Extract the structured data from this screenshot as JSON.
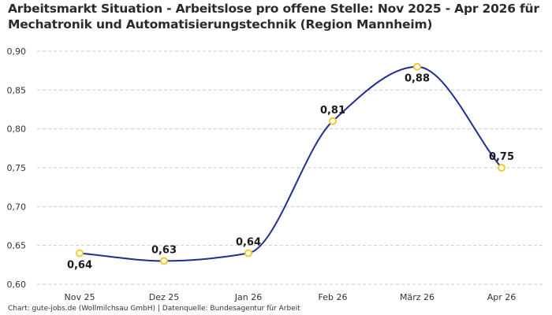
{
  "chart_data": {
    "type": "line",
    "title": "Arbeitsmarkt Situation - Arbeitslose pro offene Stelle: Nov 2025 - Apr 2026 für Mechatronik und Automatisierungstechnik (Region Mannheim)",
    "categories": [
      "Nov 25",
      "Dez 25",
      "Jan 26",
      "Feb 26",
      "März 26",
      "Apr 26"
    ],
    "series": [
      {
        "values": [
          0.64,
          0.63,
          0.64,
          0.81,
          0.88,
          0.75
        ],
        "labels": [
          "0,64",
          "0,63",
          "0,64",
          "0,81",
          "0,88",
          "0,75"
        ]
      }
    ],
    "y_ticks": [
      0.6,
      0.65,
      0.7,
      0.75,
      0.8,
      0.85,
      0.9
    ],
    "y_tick_labels": [
      "0,60",
      "0,65",
      "0,70",
      "0,75",
      "0,80",
      "0,85",
      "0,90"
    ],
    "ylim": [
      0.6,
      0.9
    ],
    "xlabel": "",
    "ylabel": "",
    "grid": true,
    "legend": "none",
    "colors": {
      "line": "#1f2f8f",
      "marker_stroke": "#f2c832",
      "marker_fill": "#ffffff",
      "grid": "#cccccc"
    }
  },
  "footer": "Chart: gute-jobs.de (Wollmilchsau GmbH) | Datenquelle: Bundesagentur für Arbeit"
}
